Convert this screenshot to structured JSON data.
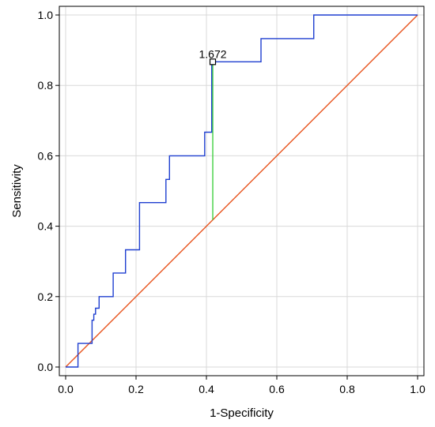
{
  "chart_data": {
    "type": "line",
    "xlabel": "1-Specificity",
    "ylabel": "Sensitivity",
    "xlim": [
      0,
      1
    ],
    "ylim": [
      0,
      1
    ],
    "grid": true,
    "x_ticks": [
      0.0,
      0.2,
      0.4,
      0.6,
      0.8,
      1.0
    ],
    "y_ticks": [
      0.0,
      0.2,
      0.4,
      0.6,
      0.8,
      1.0
    ],
    "x_tick_labels": [
      "0.0",
      "0.2",
      "0.4",
      "0.6",
      "0.8",
      "1.0"
    ],
    "y_tick_labels": [
      "0.0",
      "0.2",
      "0.4",
      "0.6",
      "0.8",
      "1.0"
    ],
    "series": [
      {
        "role": "roc-curve",
        "color": "#1f3fd0",
        "x": [
          0.0,
          0.035,
          0.035,
          0.075,
          0.075,
          0.08,
          0.08,
          0.085,
          0.085,
          0.095,
          0.095,
          0.135,
          0.135,
          0.17,
          0.17,
          0.21,
          0.21,
          0.285,
          0.285,
          0.295,
          0.295,
          0.395,
          0.395,
          0.415,
          0.415,
          0.555,
          0.555,
          0.705,
          0.705,
          1.0
        ],
        "y": [
          0.0,
          0.0,
          0.067,
          0.067,
          0.133,
          0.133,
          0.15,
          0.15,
          0.167,
          0.167,
          0.2,
          0.2,
          0.267,
          0.267,
          0.333,
          0.333,
          0.467,
          0.467,
          0.533,
          0.533,
          0.6,
          0.6,
          0.667,
          0.667,
          0.867,
          0.867,
          0.933,
          0.933,
          1.0,
          1.0
        ]
      },
      {
        "role": "reference-diagonal",
        "color": "#e8541e",
        "x": [
          0,
          1
        ],
        "y": [
          0,
          1
        ]
      }
    ],
    "cutoff": {
      "label": "1.672",
      "x": 0.418,
      "y": 0.867,
      "line_color": "#33cc33",
      "marker_color": "#000000"
    }
  }
}
